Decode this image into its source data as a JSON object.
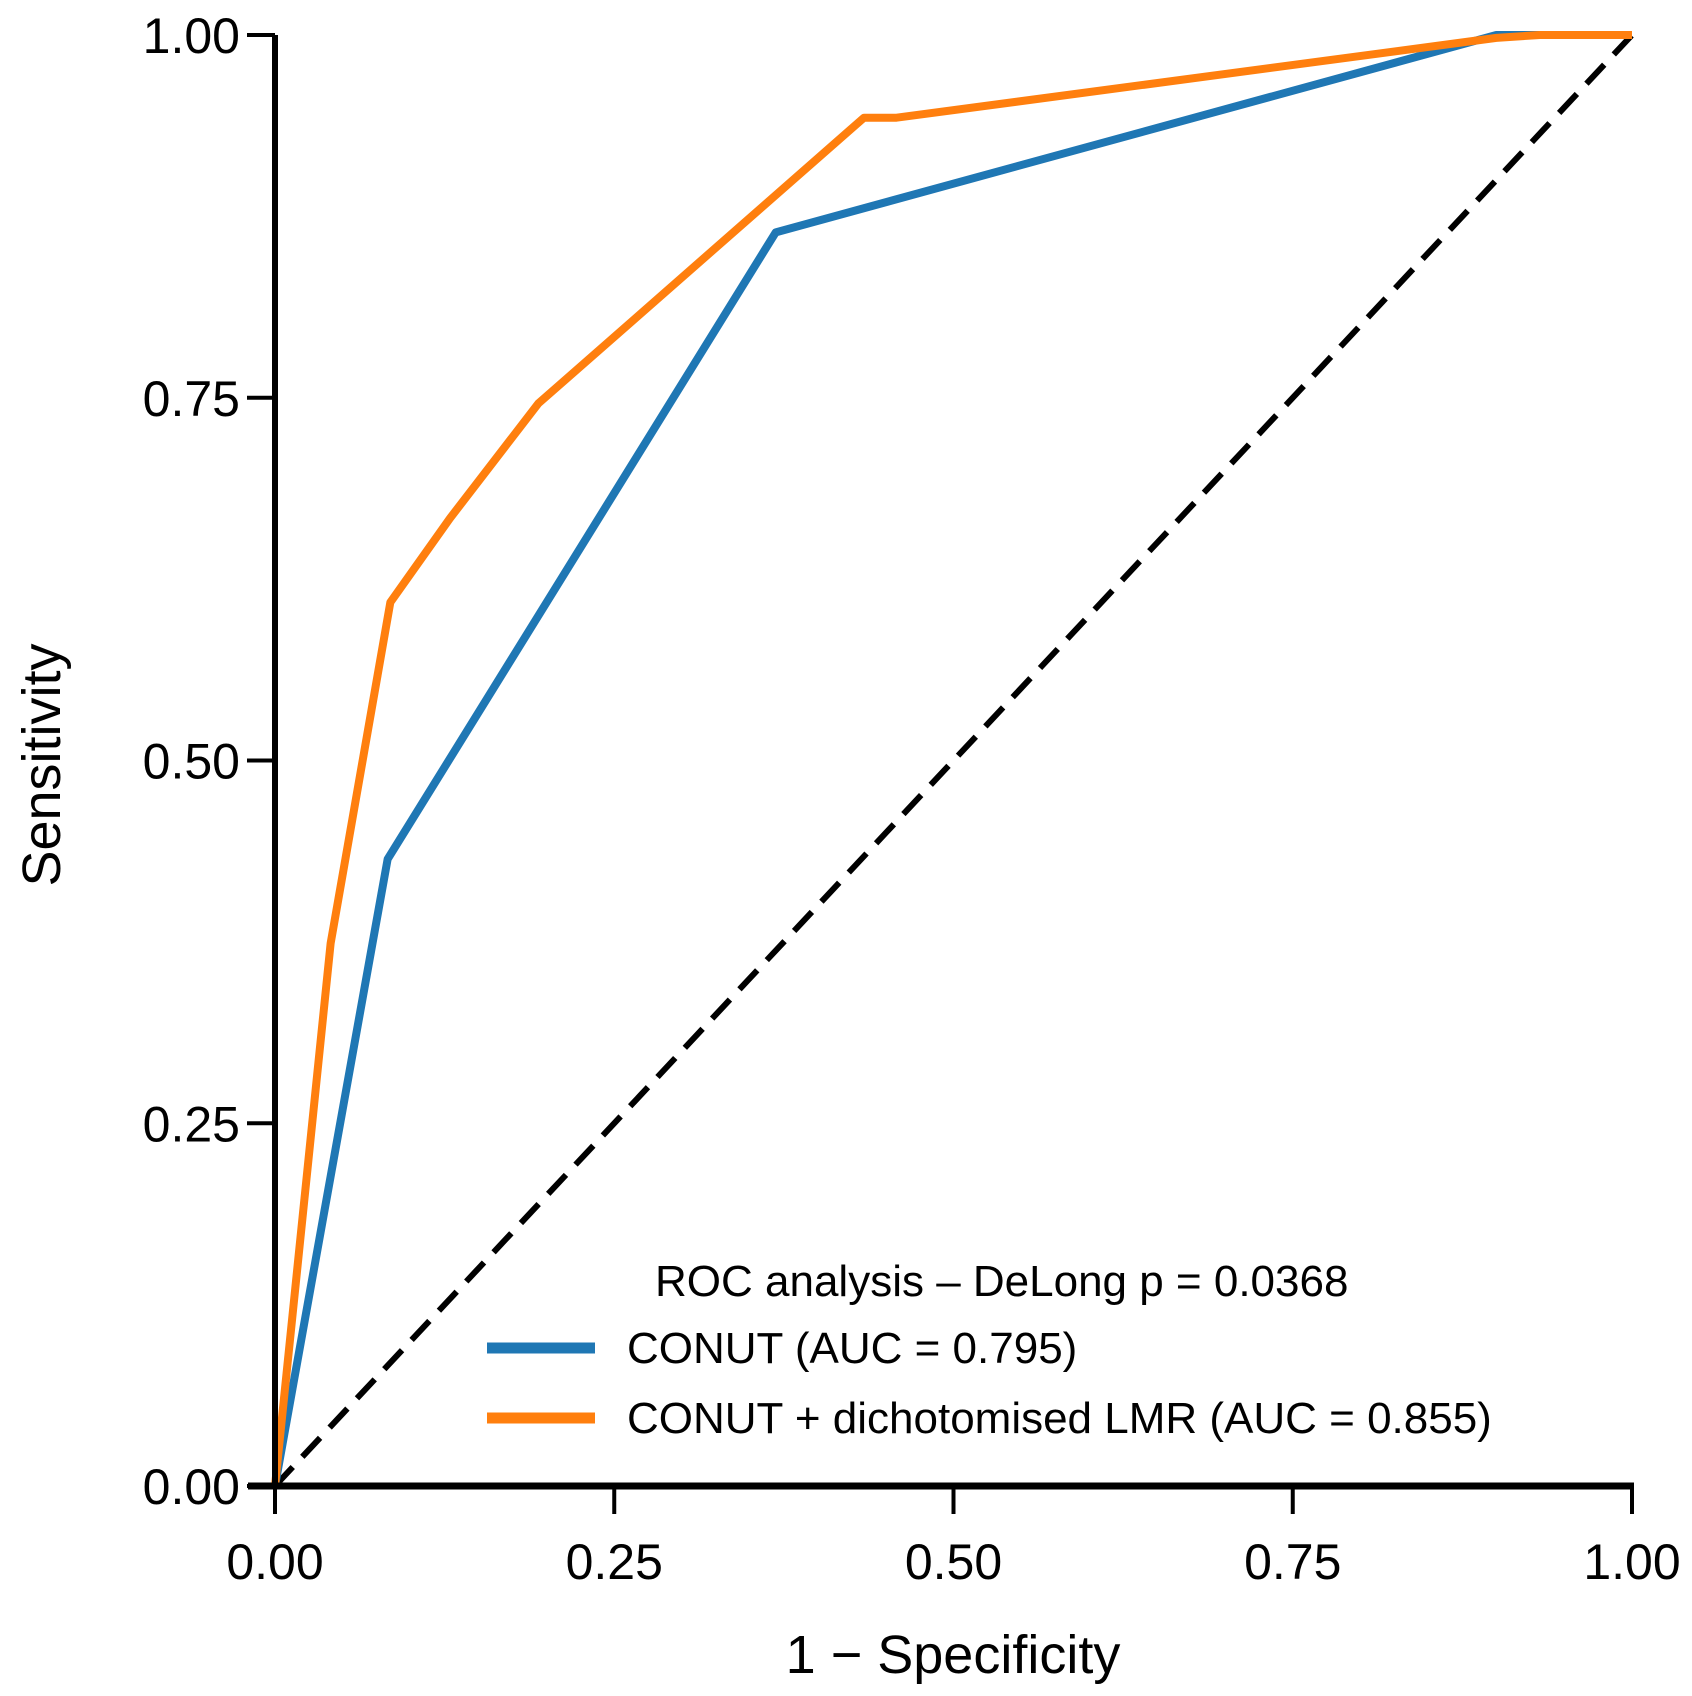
{
  "chart_data": {
    "type": "line",
    "title": "",
    "xlabel": "1 − Specificity",
    "ylabel": "Sensitivity",
    "xlim": [
      0,
      1
    ],
    "ylim": [
      0,
      1
    ],
    "xticks": [
      "0.00",
      "0.25",
      "0.50",
      "0.75",
      "1.00"
    ],
    "yticks": [
      "0.00",
      "0.25",
      "0.50",
      "0.75",
      "1.00"
    ],
    "grid": false,
    "legend": {
      "title": "ROC analysis – DeLong p = 0.0368",
      "placement": "bottom-right"
    },
    "series": [
      {
        "name": "CONUT (AUC = 0.795)",
        "color": "#1f77b4",
        "x": [
          0,
          0.083,
          0.369,
          0.9,
          1.0
        ],
        "y": [
          0,
          0.432,
          0.864,
          1.0,
          1.0
        ]
      },
      {
        "name": "CONUT + dichotomised LMR (AUC = 0.855)",
        "color": "#ff7f0e",
        "x": [
          0,
          0.041,
          0.085,
          0.129,
          0.194,
          0.434,
          0.458,
          0.9,
          0.932,
          1.0
        ],
        "y": [
          0,
          0.374,
          0.609,
          0.667,
          0.746,
          0.943,
          0.943,
          0.998,
          1.0,
          1.0
        ]
      }
    ],
    "reference_line": {
      "x": [
        0,
        1
      ],
      "y": [
        0,
        1
      ],
      "style": "dashed",
      "color": "#000000"
    }
  }
}
